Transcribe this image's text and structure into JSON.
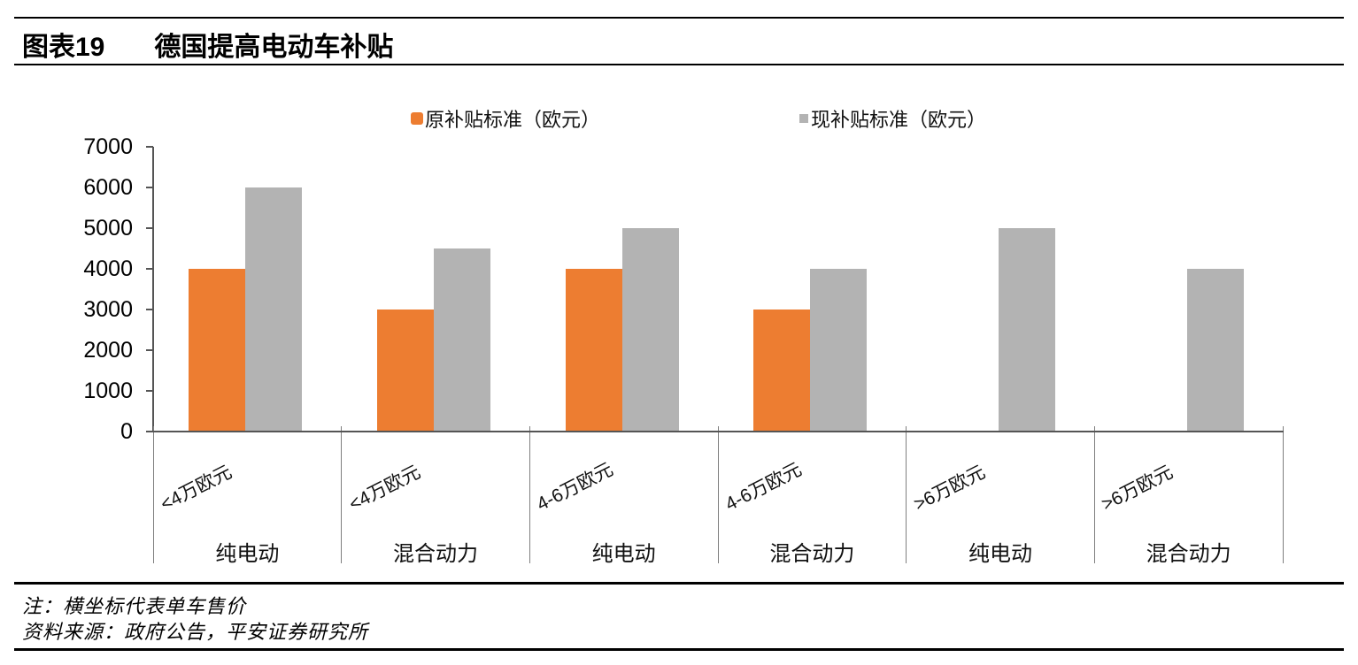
{
  "figure": {
    "label": "图表19",
    "title": "德国提高电动车补贴"
  },
  "chart_data": {
    "type": "bar",
    "title": "图表19 德国提高电动车补贴",
    "categories": [
      {
        "price": "<4万欧元",
        "vehicle": "纯电动"
      },
      {
        "price": "<4万欧元",
        "vehicle": "混合动力"
      },
      {
        "price": "4-6万欧元",
        "vehicle": "纯电动"
      },
      {
        "price": "4-6万欧元",
        "vehicle": "混合动力"
      },
      {
        "price": ">6万欧元",
        "vehicle": "纯电动"
      },
      {
        "price": ">6万欧元",
        "vehicle": "混合动力"
      }
    ],
    "series": [
      {
        "name": "原补贴标准（欧元）",
        "color": "#ED7D31",
        "values": [
          4000,
          3000,
          4000,
          3000,
          null,
          null
        ]
      },
      {
        "name": "现补贴标准（欧元）",
        "color": "#B3B3B3",
        "values": [
          6000,
          4500,
          5000,
          4000,
          5000,
          4000
        ]
      }
    ],
    "ylim": [
      0,
      7000
    ],
    "ytick_step": 1000,
    "yticks": [
      0,
      1000,
      2000,
      3000,
      4000,
      5000,
      6000,
      7000
    ],
    "xlabel": "",
    "ylabel": "",
    "grid": false,
    "legend_position": "top"
  },
  "footer": {
    "note": "注：横坐标代表单车售价",
    "source": "资料来源：政府公告，平安证券研究所"
  }
}
